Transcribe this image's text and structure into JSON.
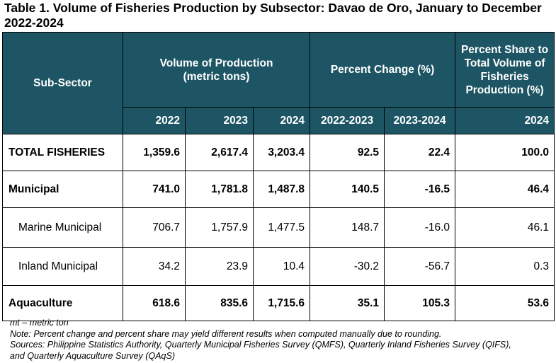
{
  "title": "Table 1. Volume of Fisheries Production by Subsector: Davao de Oro, January to December 2022-2024",
  "headers": {
    "subsector": "Sub-Sector",
    "volume": "Volume of Production (metric tons)",
    "pct_change": "Percent Change (%)",
    "pct_share": "Percent Share to Total Volume of Fisheries Production (%)",
    "years": [
      "2022",
      "2023",
      "2024"
    ],
    "changes": [
      "2022-2023",
      "2023-2024"
    ],
    "share_year": "2024"
  },
  "rows": [
    {
      "label": "TOTAL FISHERIES",
      "v2022": "1,359.6",
      "v2023": "2,617.4",
      "v2024": "3,203.4",
      "c1": "92.5",
      "c2": "22.4",
      "share": "100.0"
    },
    {
      "label": "Municipal",
      "v2022": "741.0",
      "v2023": "1,781.8",
      "v2024": "1,487.8",
      "c1": "140.5",
      "c2": "-16.5",
      "share": "46.4"
    },
    {
      "label": "Marine Municipal",
      "v2022": "706.7",
      "v2023": "1,757.9",
      "v2024": "1,477.5",
      "c1": "148.7",
      "c2": "-16.0",
      "share": "46.1"
    },
    {
      "label": "Inland Municipal",
      "v2022": "34.2",
      "v2023": "23.9",
      "v2024": "10.4",
      "c1": "-30.2",
      "c2": "-56.7",
      "share": "0.3"
    },
    {
      "label": "Aquaculture",
      "v2022": "618.6",
      "v2023": "835.6",
      "v2024": "1,715.6",
      "c1": "35.1",
      "c2": "105.3",
      "share": "53.6"
    }
  ],
  "notes": [
    "mt – metric ton",
    "Note: Percent change and percent share may yield different results when computed manually due to rounding.",
    "Sources: Philippine Statistics Authority, Quarterly Municipal Fisheries Survey (QMFS), Quarterly Inland Fisheries Survey (QIFS),",
    "and Quarterly Aquaculture Survey (QAqS)"
  ]
}
